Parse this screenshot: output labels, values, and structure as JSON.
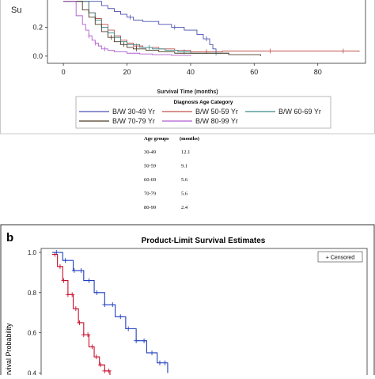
{
  "chart_data": [
    {
      "type": "line",
      "subtype": "kaplan-meier",
      "ylabel": "Su",
      "xlabel": "Survival Time (months)",
      "xlim": [
        -5,
        95
      ],
      "ylim": [
        -0.05,
        0.4
      ],
      "xticks": [
        "0",
        "20",
        "40",
        "60",
        "80"
      ],
      "xtick_values": [
        0,
        20,
        40,
        60,
        80
      ],
      "yticks": [
        "0.0",
        "0.2"
      ],
      "ytick_values": [
        0.0,
        0.2
      ],
      "legend_title": "Diagnosis Age Category",
      "legend_position": "bottom",
      "series": [
        {
          "name": "B/W 30-49 Yr",
          "color": "#4a4fb0",
          "x": [
            0,
            12,
            14,
            16,
            18,
            20,
            22,
            25,
            30,
            34,
            38,
            42,
            44,
            46,
            47,
            48
          ],
          "y": [
            0.38,
            0.35,
            0.33,
            0.31,
            0.29,
            0.27,
            0.25,
            0.24,
            0.22,
            0.2,
            0.18,
            0.15,
            0.12,
            0.08,
            0.05,
            0.02
          ],
          "censor_x": [
            21,
            35,
            45
          ]
        },
        {
          "name": "B/W 50-59 Yr",
          "color": "#c0504d",
          "x": [
            0,
            8,
            10,
            12,
            14,
            16,
            18,
            20,
            22,
            25,
            30,
            35,
            40,
            50,
            65,
            93
          ],
          "y": [
            0.38,
            0.3,
            0.26,
            0.22,
            0.18,
            0.14,
            0.11,
            0.09,
            0.07,
            0.06,
            0.05,
            0.04,
            0.03,
            0.035,
            0.035,
            0.03
          ],
          "censor_x": [
            23,
            45,
            65,
            88
          ]
        },
        {
          "name": "B/W 60-69 Yr",
          "color": "#3a8a8a",
          "x": [
            0,
            8,
            10,
            12,
            14,
            16,
            18,
            20,
            24,
            28,
            32,
            36,
            40,
            52
          ],
          "y": [
            0.38,
            0.3,
            0.25,
            0.2,
            0.16,
            0.13,
            0.1,
            0.08,
            0.06,
            0.05,
            0.04,
            0.03,
            0.02,
            0.01
          ],
          "censor_x": [
            27,
            38,
            48
          ]
        },
        {
          "name": "B/W 70-79 Yr",
          "color": "#4d3b26",
          "x": [
            0,
            6,
            8,
            10,
            12,
            14,
            16,
            18,
            20,
            22,
            26,
            30,
            35,
            52,
            62
          ],
          "y": [
            0.38,
            0.32,
            0.27,
            0.22,
            0.17,
            0.13,
            0.1,
            0.08,
            0.06,
            0.05,
            0.04,
            0.03,
            0.02,
            0.01,
            0.0
          ],
          "censor_x": [
            15,
            19,
            23
          ]
        },
        {
          "name": "B/W 80-99 Yr",
          "color": "#b05cd0",
          "x": [
            0,
            4,
            6,
            7,
            8,
            9,
            10,
            11,
            12,
            14,
            16,
            20,
            24,
            28,
            34,
            40
          ],
          "y": [
            0.38,
            0.28,
            0.22,
            0.18,
            0.14,
            0.11,
            0.09,
            0.07,
            0.05,
            0.04,
            0.03,
            0.02,
            0.015,
            0.01,
            0.005,
            0.0
          ],
          "censor_x": [
            8,
            10,
            13
          ]
        }
      ]
    },
    {
      "type": "table",
      "columns": [
        "Age groups",
        "(months)"
      ],
      "rows": [
        [
          "30-49",
          "12.1"
        ],
        [
          "50-59",
          "9.1"
        ],
        [
          "60-69",
          "5.6"
        ],
        [
          "70-79",
          "5.6"
        ],
        [
          "80-99",
          "2.4"
        ]
      ]
    },
    {
      "type": "line",
      "subtype": "kaplan-meier",
      "panel_label": "b",
      "title": "Product-Limit Survival Estimates",
      "ylabel": "rvival Probability",
      "legend_entries": [
        "+ Censored"
      ],
      "legend_position": "top-right",
      "xlim": [
        0,
        60
      ],
      "ylim": [
        0.35,
        1.02
      ],
      "yticks": [
        "1.0",
        "0.8",
        "0.6",
        "0.4"
      ],
      "ytick_values": [
        1.0,
        0.8,
        0.6,
        0.4
      ],
      "series": [
        {
          "color": "#c8102e",
          "x": [
            0,
            1,
            2,
            3,
            4,
            5,
            6,
            7,
            8,
            9,
            10,
            11
          ],
          "y": [
            0.99,
            0.93,
            0.86,
            0.79,
            0.72,
            0.65,
            0.59,
            0.53,
            0.48,
            0.44,
            0.41,
            0.38
          ],
          "censor_x": [
            0.5,
            1.5,
            2.2,
            3,
            3.8,
            4.5,
            5.2,
            6,
            6.8,
            7.6,
            8.4,
            9.2,
            10,
            10.8
          ]
        },
        {
          "color": "#1f3fbf",
          "x": [
            0,
            2,
            4,
            6,
            8,
            10,
            12,
            14,
            16,
            18,
            20,
            22
          ],
          "y": [
            1.0,
            0.96,
            0.91,
            0.86,
            0.8,
            0.74,
            0.68,
            0.62,
            0.56,
            0.5,
            0.45,
            0.4
          ],
          "censor_x": [
            0.8,
            2.5,
            4.2,
            5.5,
            7,
            8.5,
            10,
            11.5,
            13,
            14.5,
            16,
            17.5,
            19,
            20.5,
            21.5
          ]
        }
      ]
    }
  ]
}
